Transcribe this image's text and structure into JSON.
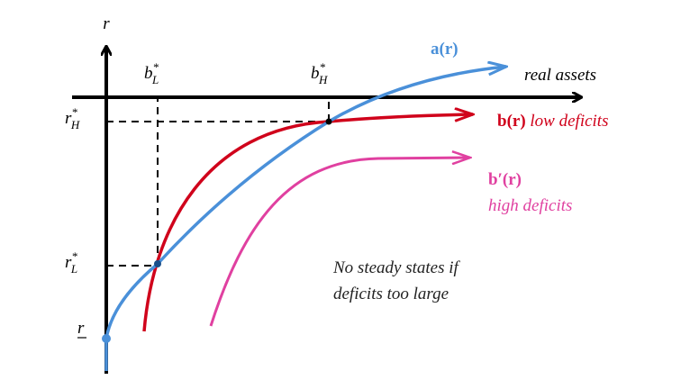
{
  "axes": {
    "y_label": "r",
    "x_label": "real assets"
  },
  "points": {
    "b_L": {
      "base": "b",
      "sup": "*",
      "sub": "L"
    },
    "b_H": {
      "base": "b",
      "sup": "*",
      "sub": "H"
    },
    "r_H": {
      "base": "r",
      "sup": "*",
      "sub": "H"
    },
    "r_L": {
      "base": "r",
      "sup": "*",
      "sub": "L"
    },
    "r_min": "r"
  },
  "curves": {
    "a": {
      "label": "a(r)"
    },
    "b": {
      "label": "b(r)",
      "note": "low deficits"
    },
    "b_prime": {
      "label": "b′(r)",
      "note": "high deficits"
    }
  },
  "annotation": {
    "lines": [
      "No steady states if",
      "deficits too large"
    ]
  }
}
